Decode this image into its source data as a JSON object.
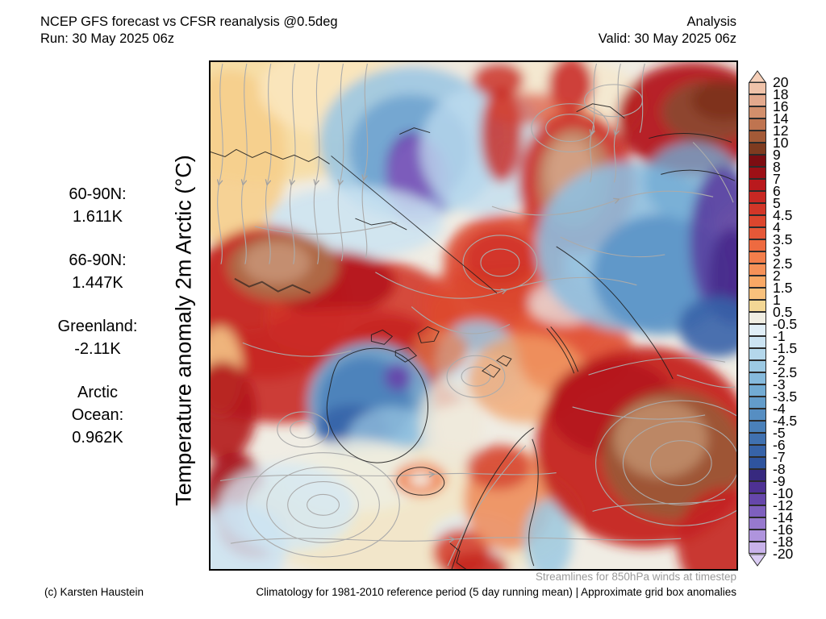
{
  "header": {
    "title": "NCEP GFS forecast vs CFSR reanalysis @0.5deg",
    "run_line": "Run: 30 May 2025 06z",
    "mode": "Analysis",
    "valid_line": "Valid: 30 May 2025 06z"
  },
  "stats": {
    "groups": [
      {
        "lines": [
          "60-90N:",
          "1.611K"
        ]
      },
      {
        "lines": [
          "66-90N:",
          "1.447K"
        ]
      },
      {
        "lines": [
          "Greenland:",
          "-2.11K"
        ]
      },
      {
        "lines": [
          "Arctic",
          "Ocean:",
          "0.962K"
        ]
      }
    ]
  },
  "map": {
    "y_axis_label": "Temperature anomaly 2m Arctic (°C)"
  },
  "colorbar": {
    "levels": [
      "20",
      "18",
      "16",
      "14",
      "12",
      "10",
      "9",
      "8",
      "7",
      "6",
      "5",
      "4.5",
      "4",
      "3.5",
      "3",
      "2.5",
      "2",
      "1.5",
      "1",
      "0.5",
      "-0.5",
      "-1",
      "-1.5",
      "-2",
      "-2.5",
      "-3",
      "-3.5",
      "-4",
      "-4.5",
      "-5",
      "-6",
      "-7",
      "-8",
      "-9",
      "-10",
      "-12",
      "-14",
      "-16",
      "-18",
      "-20"
    ],
    "colors": [
      "#efc2a9",
      "#e3a98d",
      "#d28f6c",
      "#bf7450",
      "#a45a37",
      "#7e3b20",
      "#7c0d12",
      "#9c1016",
      "#b9191d",
      "#c82823",
      "#d23628",
      "#dc462e",
      "#e65838",
      "#ee6a40",
      "#f37e4b",
      "#f69158",
      "#f9a865",
      "#f9c17c",
      "#f3d795",
      "#f0eee3",
      "#e0eef7",
      "#cbe3f2",
      "#b4d7eb",
      "#9cc9e3",
      "#86badc",
      "#72abd3",
      "#639cca",
      "#568ec2",
      "#4a80b9",
      "#4071b0",
      "#3763a8",
      "#2f549e",
      "#37297f",
      "#4e3194",
      "#6647ab",
      "#7e60be",
      "#9779ce",
      "#af94dd",
      "#c8b2ea"
    ],
    "arrow_top_color": "#f6cfb8",
    "arrow_bottom_color": "#dbcdf4"
  },
  "footer": {
    "streamlines_note": "Streamlines for 850hPa winds at timestep",
    "copyright": "(c) Karsten Haustein",
    "climatology_note": "Climatology for 1981-2010 reference period (5 day running mean) | Approximate grid box anomalies"
  }
}
